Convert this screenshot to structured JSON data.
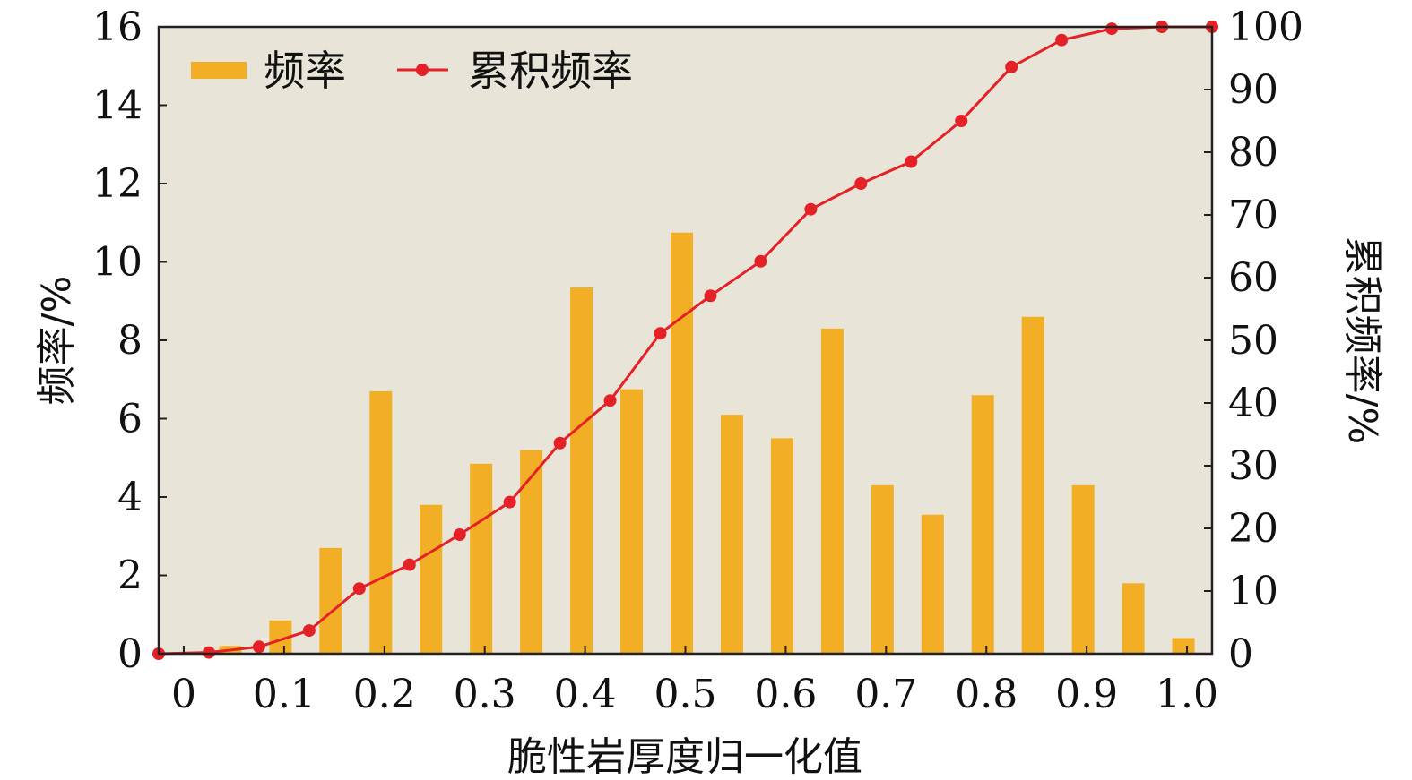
{
  "chart_data": {
    "type": "bar+line",
    "title": "",
    "xlabel": "脆性岩厚度归一化值",
    "ylabel_left": "频率/%",
    "ylabel_right": "累积频率/%",
    "x_ticks": [
      "0",
      "0.1",
      "0.2",
      "0.3",
      "0.4",
      "0.5",
      "0.6",
      "0.7",
      "0.8",
      "0.9",
      "1.0"
    ],
    "y_left_ticks": [
      "0",
      "2",
      "4",
      "6",
      "8",
      "10",
      "12",
      "14",
      "16"
    ],
    "y_right_ticks": [
      "0",
      "10",
      "20",
      "30",
      "40",
      "50",
      "60",
      "70",
      "80",
      "90",
      "100"
    ],
    "xlim": [
      -0.025,
      1.025
    ],
    "ylim_left": [
      0,
      16
    ],
    "ylim_right": [
      0,
      100
    ],
    "grid": false,
    "legend_position": "top-left",
    "colors": {
      "bar": "#F2AE24",
      "line": "#E52127",
      "plot_background": "#E8E5D8",
      "axis": "#222222"
    },
    "series": [
      {
        "name": "频率",
        "kind": "bar",
        "axis": "left",
        "x": [
          0.05,
          0.1,
          0.15,
          0.2,
          0.25,
          0.3,
          0.35,
          0.4,
          0.45,
          0.5,
          0.55,
          0.6,
          0.65,
          0.7,
          0.75,
          0.8,
          0.85,
          0.9,
          0.95,
          1.0
        ],
        "values": [
          0.2,
          0.85,
          2.7,
          6.7,
          3.8,
          4.85,
          5.2,
          9.35,
          6.75,
          10.75,
          6.1,
          5.5,
          8.3,
          4.3,
          3.55,
          6.6,
          8.6,
          4.3,
          1.8,
          0.4
        ]
      },
      {
        "name": "累积频率",
        "kind": "line",
        "axis": "right",
        "x": [
          -0.025,
          0.025,
          0.075,
          0.125,
          0.175,
          0.225,
          0.275,
          0.325,
          0.375,
          0.425,
          0.475,
          0.525,
          0.575,
          0.625,
          0.675,
          0.725,
          0.775,
          0.825,
          0.875,
          0.925,
          0.975,
          1.025
        ],
        "values": [
          0,
          0.2,
          1.1,
          3.7,
          10.4,
          14.2,
          19.0,
          24.2,
          33.6,
          40.4,
          51.1,
          57.1,
          62.6,
          70.9,
          75.0,
          78.5,
          85.0,
          93.6,
          97.9,
          99.7,
          100.0,
          100.0
        ]
      }
    ]
  }
}
